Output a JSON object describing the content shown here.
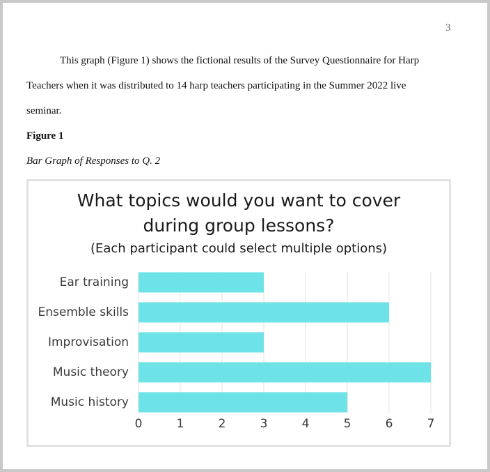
{
  "page_number": "3",
  "paragraph_lines": [
    "This graph (Figure 1) shows the fictional results of the Survey Questionnaire for Harp",
    "Teachers when it was distributed to 14 harp teachers participating in the Summer 2022 live",
    "seminar."
  ],
  "figure_label": "Figure 1",
  "figure_caption": "Bar Graph of Responses to Q. 2",
  "chart_data": {
    "type": "barh",
    "title": "What topics would you want to cover during group lessons?",
    "subtitle": "(Each participant could select multiple options)",
    "categories": [
      "Ear training",
      "Ensemble skills",
      "Improvisation",
      "Music theory",
      "Music history"
    ],
    "values": [
      3,
      6,
      3,
      7,
      5
    ],
    "color": "#6de3e8",
    "xlim": [
      0,
      7
    ],
    "xticks": [
      0,
      1,
      2,
      3,
      4,
      5,
      6,
      7
    ],
    "grid": true
  }
}
